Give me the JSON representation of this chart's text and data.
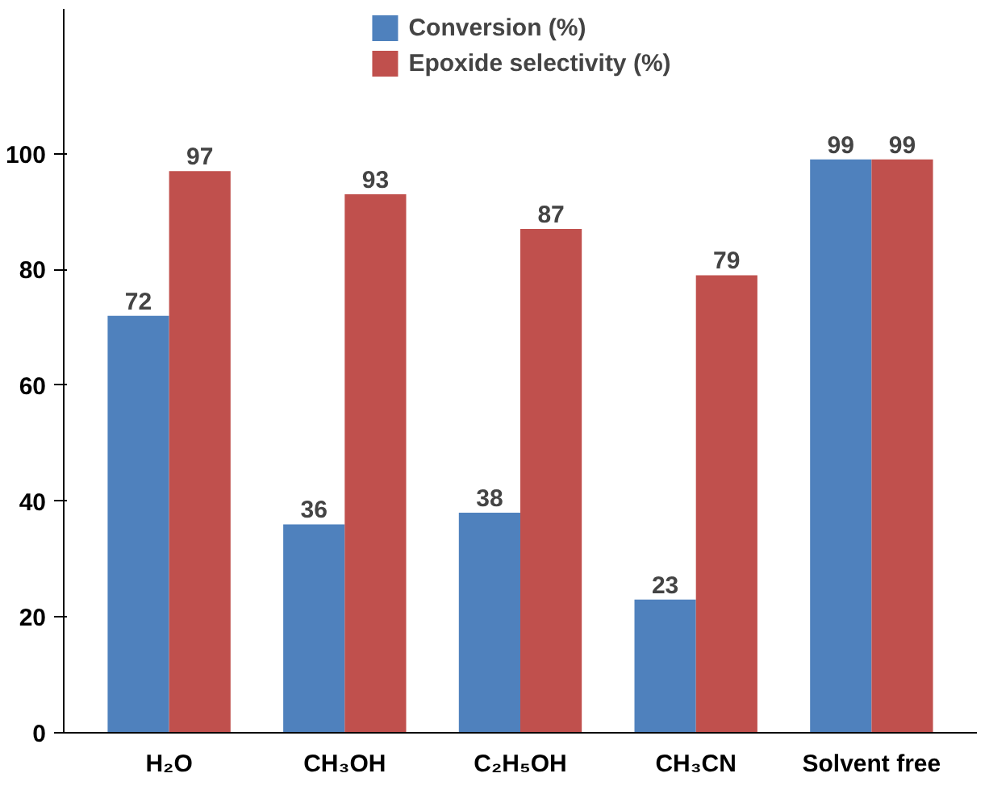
{
  "chart_data": {
    "type": "bar",
    "categories": [
      "H₂O",
      "CH₃OH",
      "C₂H₅OH",
      "CH₃CN",
      "Solvent free"
    ],
    "series": [
      {
        "name": "Conversion (%)",
        "color": "#4f81bd",
        "values": [
          72,
          36,
          38,
          23,
          99
        ]
      },
      {
        "name": "Epoxide selectivity (%)",
        "color": "#c0504d",
        "values": [
          97,
          93,
          87,
          79,
          99
        ]
      }
    ],
    "ylim": [
      0,
      125
    ],
    "yticks": [
      0,
      20,
      40,
      60,
      80,
      100
    ],
    "grid": false,
    "legend": "top",
    "data_labels": true
  }
}
